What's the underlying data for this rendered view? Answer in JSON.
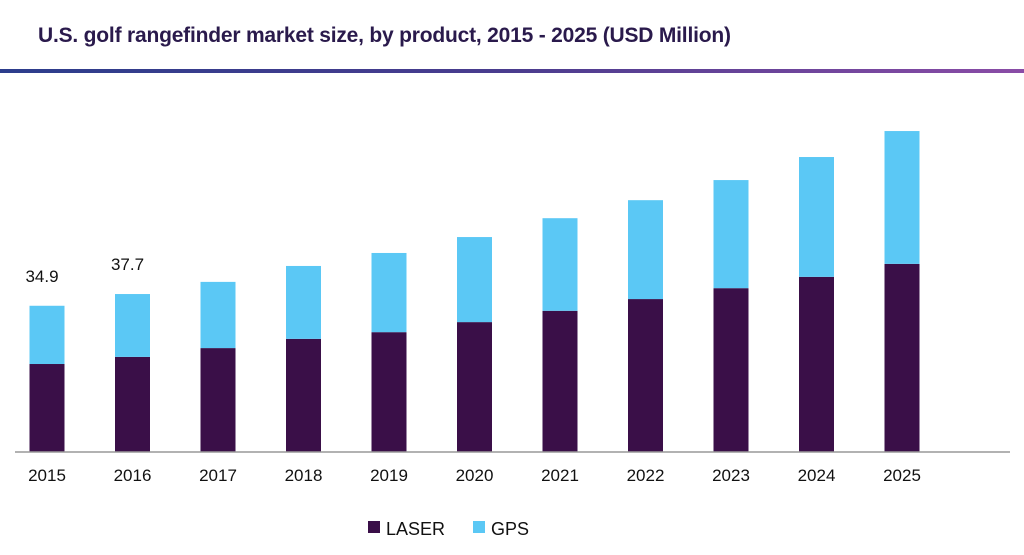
{
  "chart_data": {
    "type": "bar",
    "stacked": true,
    "title": "U.S. golf rangefinder market size, by product, 2015 - 2025 (USD Million)",
    "xlabel": "",
    "ylabel": "",
    "categories": [
      "2015",
      "2016",
      "2017",
      "2018",
      "2019",
      "2020",
      "2021",
      "2022",
      "2023",
      "2024",
      "2025"
    ],
    "series": [
      {
        "name": "LASER",
        "color": "#3a0f48",
        "values": [
          21.0,
          22.7,
          24.8,
          27.0,
          28.6,
          31.0,
          33.7,
          36.5,
          39.1,
          41.8,
          44.9
        ]
      },
      {
        "name": "GPS",
        "color": "#5bc8f5",
        "values": [
          13.9,
          15.0,
          15.8,
          17.4,
          18.9,
          20.3,
          22.1,
          23.6,
          25.8,
          28.6,
          31.7
        ]
      }
    ],
    "data_labels": [
      {
        "category": "2015",
        "text": "34.9"
      },
      {
        "category": "2016",
        "text": "37.7"
      }
    ],
    "ylim": [
      0,
      80
    ],
    "grid": false,
    "legend_position": "bottom",
    "title_rule_colors": [
      "#2c3d8c",
      "#8a4ca6"
    ]
  }
}
